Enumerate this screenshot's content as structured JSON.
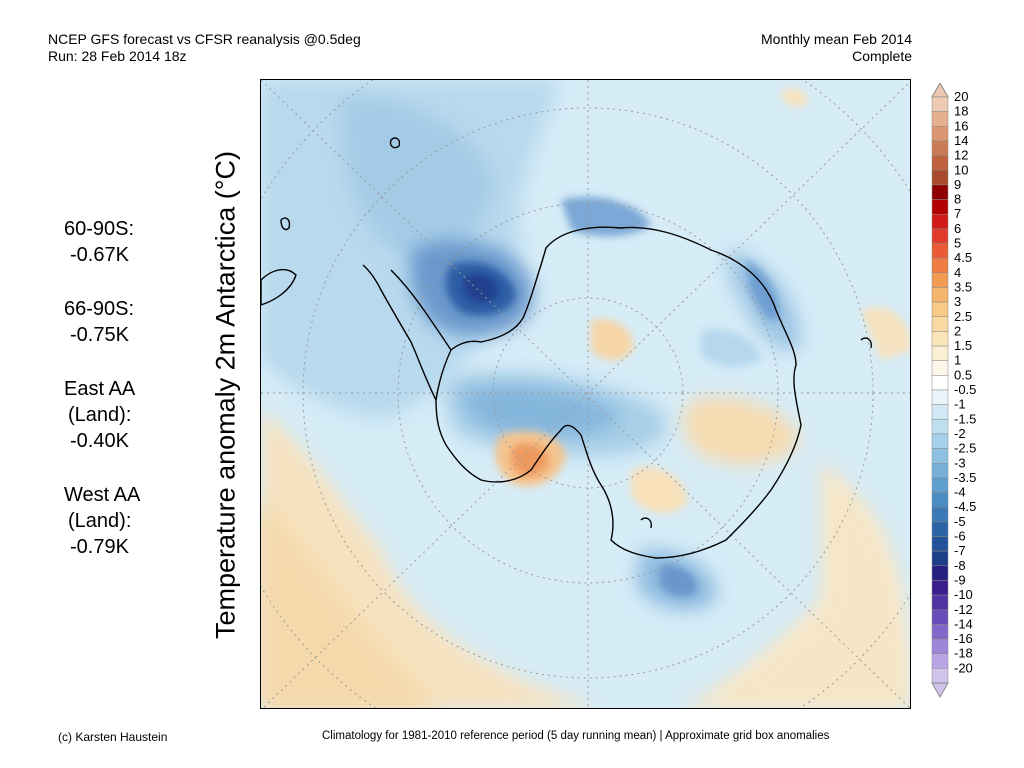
{
  "header": {
    "title_line1": "NCEP GFS forecast vs CFSR reanalysis @0.5deg",
    "title_line2": "Run: 28 Feb 2014 18z",
    "period_line1": "Monthly mean Feb 2014",
    "period_line2": "Complete"
  },
  "ylabel": "Temperature anomaly 2m Antarctica (°C)",
  "stats": [
    {
      "region_lines": [
        "60-90S:"
      ],
      "value": "-0.67K"
    },
    {
      "region_lines": [
        "66-90S:"
      ],
      "value": "-0.75K"
    },
    {
      "region_lines": [
        "East AA",
        "(Land):"
      ],
      "value": "-0.40K"
    },
    {
      "region_lines": [
        "West AA",
        "(Land):"
      ],
      "value": "-0.79K"
    }
  ],
  "colorbar": {
    "labels": [
      "20",
      "18",
      "16",
      "14",
      "12",
      "10",
      "9",
      "8",
      "7",
      "6",
      "5",
      "4.5",
      "4",
      "3.5",
      "3",
      "2.5",
      "2",
      "1.5",
      "1",
      "0.5",
      "-0.5",
      "-1",
      "-1.5",
      "-2",
      "-2.5",
      "-3",
      "-3.5",
      "-4",
      "-4.5",
      "-5",
      "-6",
      "-7",
      "-8",
      "-9",
      "-10",
      "-12",
      "-14",
      "-16",
      "-18",
      "-20"
    ],
    "colors": [
      "#f0c9b2",
      "#e6b08f",
      "#d99670",
      "#cb7b55",
      "#bd623d",
      "#a84a2c",
      "#8f0000",
      "#b30000",
      "#d11a1a",
      "#e03a2a",
      "#ea5a35",
      "#f07a42",
      "#f39a55",
      "#f6b56c",
      "#f8c987",
      "#f9d99f",
      "#fae5b8",
      "#fbefd3",
      "#fdf7ea",
      "#ffffff",
      "#e9f4fb",
      "#d2e9f5",
      "#bddff0",
      "#a6d1ea",
      "#8ec2e2",
      "#77b1d9",
      "#5f9fcf",
      "#4b8cc4",
      "#3a78b7",
      "#2d64a8",
      "#22529a",
      "#1d3f8a",
      "#261f80",
      "#3a1f8f",
      "#5034a3",
      "#6a4db8",
      "#8468c9",
      "#9e85d7",
      "#b8a5e3",
      "#d0c4ee"
    ]
  },
  "map": {
    "ocean_base_color": "#d6ecf7",
    "land_outline_color": "#000000"
  },
  "footer": {
    "left": "(c) Karsten Haustein",
    "right": "Climatology for 1981-2010 reference period (5 day running mean) | Approximate grid box anomalies"
  }
}
